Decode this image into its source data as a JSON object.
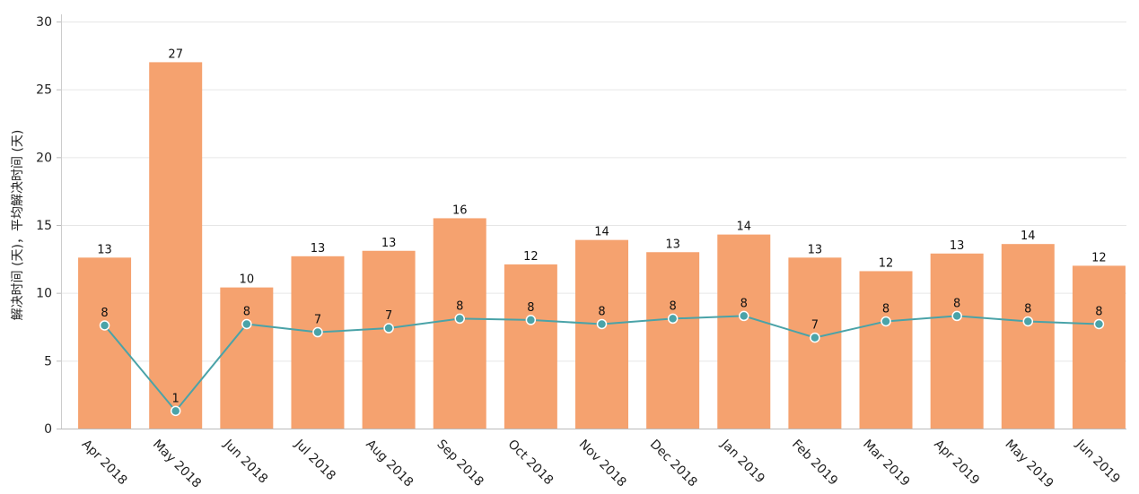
{
  "chart_data": {
    "type": "bar",
    "title": "",
    "xlabel": "",
    "ylabel": "解决时间 (天)，平均解决时间 (天)",
    "ylim": [
      0,
      30
    ],
    "yticks": [
      0,
      5,
      10,
      15,
      20,
      25,
      30
    ],
    "grid": true,
    "categories": [
      "Apr 2018",
      "May 2018",
      "Jun 2018",
      "Jul 2018",
      "Aug 2018",
      "Sep 2018",
      "Oct 2018",
      "Nov 2018",
      "Dec 2018",
      "Jan 2019",
      "Feb 2019",
      "Mar 2019",
      "Apr 2019",
      "May 2019",
      "Jun 2019"
    ],
    "series": [
      {
        "name": "解决时间 (天)",
        "type": "bar",
        "color": "#f5a26f",
        "values": [
          12.6,
          27.0,
          10.4,
          12.7,
          13.1,
          15.5,
          12.1,
          13.9,
          13.0,
          14.3,
          12.6,
          11.6,
          12.9,
          13.6,
          12.0
        ],
        "labels": [
          "13",
          "27",
          "10",
          "13",
          "13",
          "16",
          "12",
          "14",
          "13",
          "14",
          "13",
          "12",
          "13",
          "14",
          "12"
        ]
      },
      {
        "name": "平均解决时间 (天)",
        "type": "line",
        "color": "#4aa3a8",
        "values": [
          7.6,
          1.3,
          7.7,
          7.1,
          7.4,
          8.1,
          8.0,
          7.7,
          8.1,
          8.3,
          6.7,
          7.9,
          8.3,
          7.9,
          7.7
        ],
        "labels": [
          "8",
          "1",
          "8",
          "7",
          "7",
          "8",
          "8",
          "8",
          "8",
          "8",
          "7",
          "8",
          "8",
          "8",
          "8"
        ]
      }
    ]
  }
}
